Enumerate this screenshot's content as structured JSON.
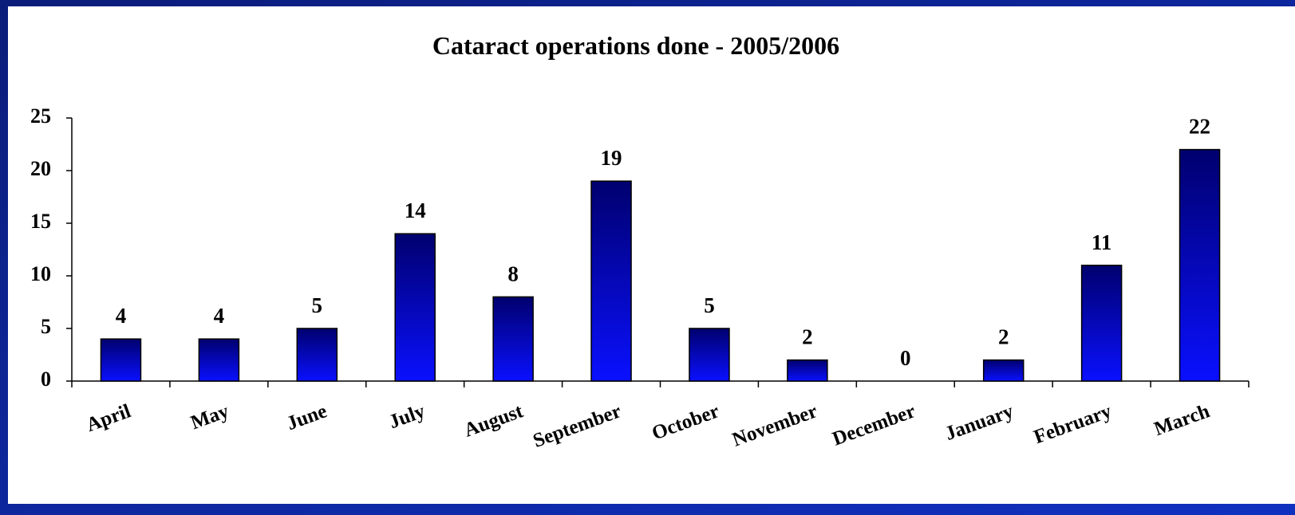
{
  "chart_data": {
    "type": "bar",
    "title": "Cataract operations done  - 2005/2006",
    "categories": [
      "April",
      "May",
      "June",
      "July",
      "August",
      "September",
      "October",
      "November",
      "December",
      "January",
      "February",
      "March"
    ],
    "values": [
      4,
      4,
      5,
      14,
      8,
      19,
      5,
      2,
      0,
      2,
      11,
      22
    ],
    "color": "#0a10ff",
    "ylim": [
      0,
      25
    ],
    "yticks": [
      0,
      5,
      10,
      15,
      20,
      25
    ],
    "grid": false
  }
}
